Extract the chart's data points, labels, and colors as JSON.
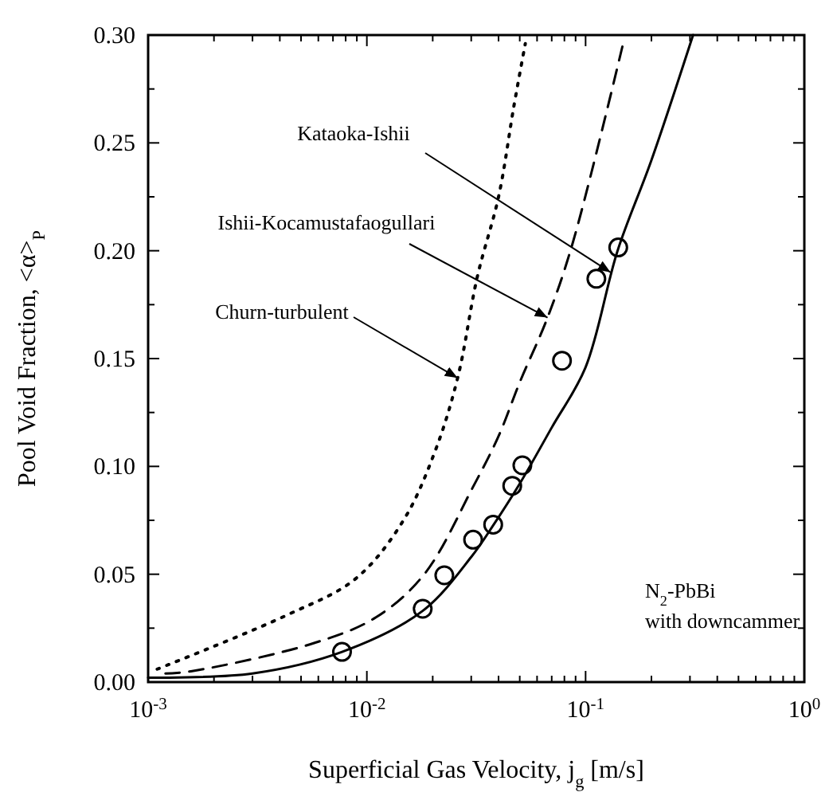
{
  "chart_data": {
    "type": "line",
    "xlabel": "Superficial Gas Velocity, j$_{g}$ [m/s]",
    "ylabel": "Pool Void Fraction, <α>$_{P}$",
    "log": "x",
    "xlim": [
      0.001,
      1
    ],
    "ylim": [
      0,
      0.3
    ],
    "xticks": [
      {
        "value": 0.001,
        "label": "10$^{-3}$"
      },
      {
        "value": 0.002,
        "label": null
      },
      {
        "value": 0.003,
        "label": null
      },
      {
        "value": 0.004,
        "label": null
      },
      {
        "value": 0.005,
        "label": null
      },
      {
        "value": 0.006,
        "label": null
      },
      {
        "value": 0.007,
        "label": null
      },
      {
        "value": 0.008,
        "label": null
      },
      {
        "value": 0.009,
        "label": null
      },
      {
        "value": 0.01,
        "label": "10$^{-2}$"
      },
      {
        "value": 0.02,
        "label": null
      },
      {
        "value": 0.03,
        "label": null
      },
      {
        "value": 0.04,
        "label": null
      },
      {
        "value": 0.05,
        "label": null
      },
      {
        "value": 0.06,
        "label": null
      },
      {
        "value": 0.07,
        "label": null
      },
      {
        "value": 0.08,
        "label": null
      },
      {
        "value": 0.09,
        "label": null
      },
      {
        "value": 0.1,
        "label": "10$^{-1}$"
      },
      {
        "value": 0.2,
        "label": null
      },
      {
        "value": 0.3,
        "label": null
      },
      {
        "value": 0.4,
        "label": null
      },
      {
        "value": 0.5,
        "label": null
      },
      {
        "value": 0.6,
        "label": null
      },
      {
        "value": 0.7,
        "label": null
      },
      {
        "value": 0.8,
        "label": null
      },
      {
        "value": 0.9,
        "label": null
      },
      {
        "value": 1,
        "label": "10$^{0}$"
      }
    ],
    "yticks": [
      {
        "value": 0,
        "label": "0.00"
      },
      {
        "value": 0.025,
        "label": null
      },
      {
        "value": 0.05,
        "label": "0.05"
      },
      {
        "value": 0.075,
        "label": null
      },
      {
        "value": 0.1,
        "label": "0.10"
      },
      {
        "value": 0.125,
        "label": null
      },
      {
        "value": 0.15,
        "label": "0.15"
      },
      {
        "value": 0.175,
        "label": null
      },
      {
        "value": 0.2,
        "label": "0.20"
      },
      {
        "value": 0.225,
        "label": null
      },
      {
        "value": 0.25,
        "label": "0.25"
      },
      {
        "value": 0.275,
        "label": null
      },
      {
        "value": 0.3,
        "label": "0.30"
      }
    ],
    "series": [
      {
        "type": "line",
        "color": "#000000",
        "line_style": "solid",
        "x": [
          0.001,
          0.003,
          0.0077,
          0.018,
          0.03,
          0.038,
          0.05,
          0.07,
          0.1,
          0.14,
          0.2,
          0.31
        ],
        "values": [
          0.002,
          0.004,
          0.014,
          0.033,
          0.058,
          0.073,
          0.092,
          0.118,
          0.146,
          0.2,
          0.242,
          0.3
        ]
      },
      {
        "type": "line",
        "color": "#000000",
        "line_style": "dashed",
        "x": [
          0.0012,
          0.00157,
          0.0057,
          0.011,
          0.0183,
          0.0304,
          0.04,
          0.05,
          0.067,
          0.087,
          0.15
        ],
        "values": [
          0.004,
          0.005,
          0.018,
          0.03,
          0.05,
          0.09,
          0.114,
          0.139,
          0.169,
          0.203,
          0.298
        ]
      },
      {
        "type": "line",
        "color": "#000000",
        "line_style": "dotted",
        "x": [
          0.0011,
          0.0043,
          0.0089,
          0.0147,
          0.0205,
          0.026,
          0.032,
          0.04,
          0.047,
          0.053
        ],
        "values": [
          0.006,
          0.031,
          0.048,
          0.075,
          0.107,
          0.141,
          0.188,
          0.225,
          0.267,
          0.296
        ]
      },
      {
        "type": "scatter",
        "color": "#000000",
        "marker": "circle",
        "x": [
          0.0077,
          0.018,
          0.0226,
          0.0306,
          0.0378,
          0.0462,
          0.0514,
          0.078,
          0.112,
          0.141
        ],
        "values": [
          0.014,
          0.034,
          0.0495,
          0.066,
          0.073,
          0.091,
          0.1005,
          0.149,
          0.187,
          0.2015
        ]
      }
    ],
    "annotations": [
      {
        "text": "Kataoka-Ishii",
        "x": 0.13,
        "y": 0.19
      },
      {
        "text": "Ishii-Kocamustafaogullari",
        "x": 0.067,
        "y": 0.169
      },
      {
        "text": "Churn-turbulent",
        "x": 0.026,
        "y": 0.141
      },
      "N$_{2}$-PbBi",
      "with downcammer"
    ]
  }
}
